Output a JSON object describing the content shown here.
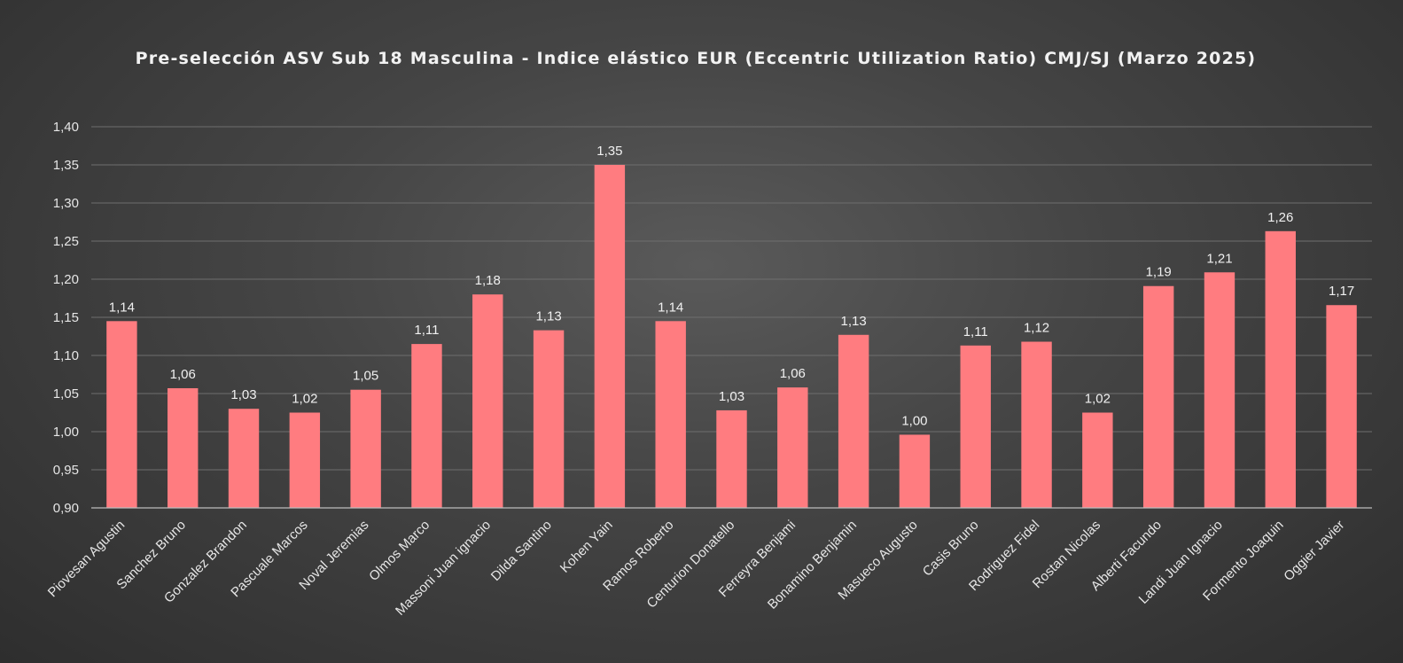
{
  "chart_data": {
    "type": "bar",
    "title": "Pre-selección ASV Sub 18 Masculina - Indice elástico EUR (Eccentric Utilization Ratio) CMJ/SJ (Marzo 2025)",
    "xlabel": "",
    "ylabel": "",
    "ylim": [
      0.9,
      1.4
    ],
    "ytick_step": 0.05,
    "ytick_labels": [
      "0,90",
      "0,95",
      "1,00",
      "1,05",
      "1,10",
      "1,15",
      "1,20",
      "1,25",
      "1,30",
      "1,35",
      "1,40"
    ],
    "grid": true,
    "bar_color": "#ff7c80",
    "categories": [
      "Piovesan Agustin",
      "Sanchez Bruno",
      "Gonzalez Brandon",
      "Pascuale Marcos",
      "Noval Jeremias",
      "Olmos Marco",
      "Massoni Juan ignacio",
      "Dilda Santino",
      "Kohen Yain",
      "Ramos Roberto",
      "Centurion Donatello",
      "Ferreyra Benjami",
      "Bonamino Benjamin",
      "Masueco Augusto",
      "Casis Bruno",
      "Rodriguez Fidel",
      "Rostan Nicolas",
      "Alberti Facundo",
      "Landi Juan Ignacio",
      "Formento Joaquin",
      "Oggier Javier"
    ],
    "values": [
      1.145,
      1.057,
      1.03,
      1.025,
      1.055,
      1.115,
      1.18,
      1.133,
      1.35,
      1.145,
      1.028,
      1.058,
      1.127,
      0.996,
      1.113,
      1.118,
      1.025,
      1.191,
      1.209,
      1.263,
      1.166
    ],
    "data_labels": [
      "1,14",
      "1,06",
      "1,03",
      "1,02",
      "1,05",
      "1,11",
      "1,18",
      "1,13",
      "1,35",
      "1,14",
      "1,03",
      "1,06",
      "1,13",
      "1,00",
      "1,11",
      "1,12",
      "1,02",
      "1,19",
      "1,21",
      "1,26",
      "1,17"
    ]
  }
}
